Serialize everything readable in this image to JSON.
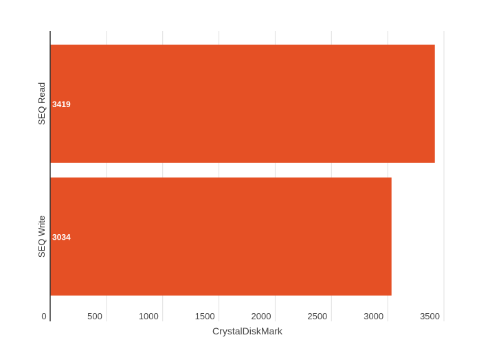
{
  "chart_data": {
    "type": "bar",
    "orientation": "horizontal",
    "categories": [
      "SEQ Read",
      "SEQ Write"
    ],
    "values": [
      3419,
      3034
    ],
    "data_labels": [
      "3419",
      "3034"
    ],
    "xlabel": "CrystalDiskMark",
    "ylabel": "",
    "xlim": [
      0,
      3500
    ],
    "x_ticks": [
      0,
      500,
      1000,
      1500,
      2000,
      2500,
      3000,
      3500
    ],
    "x_tick_labels": [
      "0",
      "500",
      "1000",
      "1500",
      "2000",
      "2500",
      "3000",
      "3500"
    ],
    "grid": true,
    "legend": "none",
    "colors": {
      "bar": "#e55025",
      "grid": "#e0e0e0",
      "axis": "#333333",
      "tick_text": "#444444",
      "data_label": "#ffffff"
    }
  }
}
